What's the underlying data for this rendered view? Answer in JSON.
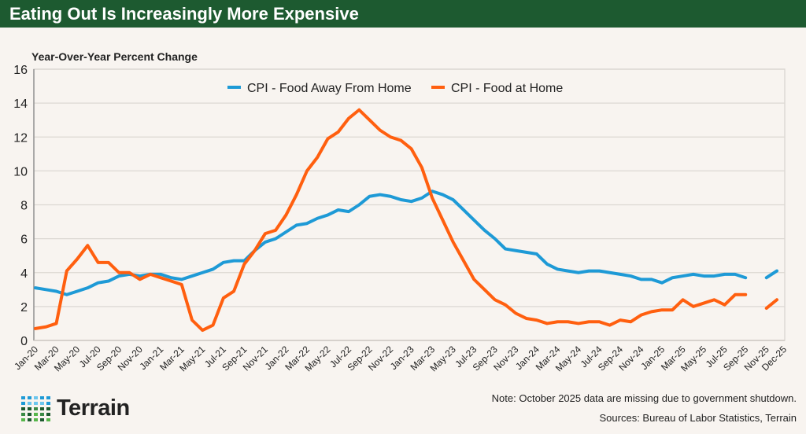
{
  "header": {
    "title": "Eating Out Is Increasingly More Expensive"
  },
  "notes": {
    "note": "Note: October 2025 data are missing due to government shutdown.",
    "sources": "Sources: Bureau of Labor Statistics, Terrain"
  },
  "logo": {
    "text": "Terrain"
  },
  "chart_data": {
    "type": "line",
    "title": "",
    "ylabel": "Year-Over-Year Percent Change",
    "xlabel": "",
    "ylim": [
      0,
      16
    ],
    "yticks": [
      0,
      2,
      4,
      6,
      8,
      10,
      12,
      14,
      16
    ],
    "grid": true,
    "legend_position": "top-center",
    "x": [
      "Jan-20",
      "Feb-20",
      "Mar-20",
      "Apr-20",
      "May-20",
      "Jun-20",
      "Jul-20",
      "Aug-20",
      "Sep-20",
      "Oct-20",
      "Nov-20",
      "Dec-20",
      "Jan-21",
      "Feb-21",
      "Mar-21",
      "Apr-21",
      "May-21",
      "Jun-21",
      "Jul-21",
      "Aug-21",
      "Sep-21",
      "Oct-21",
      "Nov-21",
      "Dec-21",
      "Jan-22",
      "Feb-22",
      "Mar-22",
      "Apr-22",
      "May-22",
      "Jun-22",
      "Jul-22",
      "Aug-22",
      "Sep-22",
      "Oct-22",
      "Nov-22",
      "Dec-22",
      "Jan-23",
      "Feb-23",
      "Mar-23",
      "Apr-23",
      "May-23",
      "Jun-23",
      "Jul-23",
      "Aug-23",
      "Sep-23",
      "Oct-23",
      "Nov-23",
      "Dec-23",
      "Jan-24",
      "Feb-24",
      "Mar-24",
      "Apr-24",
      "May-24",
      "Jun-24",
      "Jul-24",
      "Aug-24",
      "Sep-24",
      "Oct-24",
      "Nov-24",
      "Dec-24",
      "Jan-25",
      "Feb-25",
      "Mar-25",
      "Apr-25",
      "May-25",
      "Jun-25",
      "Jul-25",
      "Aug-25",
      "Sep-25",
      "Oct-25",
      "Nov-25",
      "Dec-25"
    ],
    "xtick_labels": [
      "Jan-20",
      "Mar-20",
      "May-20",
      "Jul-20",
      "Sep-20",
      "Nov-20",
      "Jan-21",
      "Mar-21",
      "May-21",
      "Jul-21",
      "Sep-21",
      "Nov-21",
      "Jan-22",
      "Mar-22",
      "May-22",
      "Jul-22",
      "Sep-22",
      "Nov-22",
      "Jan-23",
      "Mar-23",
      "May-23",
      "Jul-23",
      "Sep-23",
      "Nov-23",
      "Jan-24",
      "Mar-24",
      "May-24",
      "Jul-24",
      "Sep-24",
      "Nov-24",
      "Jan-25",
      "Mar-25",
      "May-25",
      "Jul-25",
      "Sep-25",
      "Nov-25",
      "Dec-25"
    ],
    "series": [
      {
        "name": "CPI - Food Away From Home",
        "color": "#1e9ad6",
        "values": [
          3.1,
          3.0,
          2.9,
          2.7,
          2.9,
          3.1,
          3.4,
          3.5,
          3.8,
          3.9,
          3.8,
          3.9,
          3.9,
          3.7,
          3.6,
          3.8,
          4.0,
          4.2,
          4.6,
          4.7,
          4.7,
          5.3,
          5.8,
          6.0,
          6.4,
          6.8,
          6.9,
          7.2,
          7.4,
          7.7,
          7.6,
          8.0,
          8.5,
          8.6,
          8.5,
          8.3,
          8.2,
          8.4,
          8.8,
          8.6,
          8.3,
          7.7,
          7.1,
          6.5,
          6.0,
          5.4,
          5.3,
          5.2,
          5.1,
          4.5,
          4.2,
          4.1,
          4.0,
          4.1,
          4.1,
          4.0,
          3.9,
          3.8,
          3.6,
          3.6,
          3.4,
          3.7,
          3.8,
          3.9,
          3.8,
          3.8,
          3.9,
          3.9,
          3.7,
          null,
          3.7,
          4.1
        ]
      },
      {
        "name": "CPI - Food at Home",
        "color": "#ff5f0f",
        "values": [
          0.7,
          0.8,
          1.0,
          4.1,
          4.8,
          5.6,
          4.6,
          4.6,
          4.0,
          4.0,
          3.6,
          3.9,
          3.7,
          3.5,
          3.3,
          1.2,
          0.6,
          0.9,
          2.5,
          2.9,
          4.5,
          5.3,
          6.3,
          6.5,
          7.4,
          8.6,
          10.0,
          10.8,
          11.9,
          12.3,
          13.1,
          13.6,
          13.0,
          12.4,
          12.0,
          11.8,
          11.3,
          10.2,
          8.4,
          7.1,
          5.8,
          4.7,
          3.6,
          3.0,
          2.4,
          2.1,
          1.6,
          1.3,
          1.2,
          1.0,
          1.1,
          1.1,
          1.0,
          1.1,
          1.1,
          0.9,
          1.2,
          1.1,
          1.5,
          1.7,
          1.8,
          1.8,
          2.4,
          2.0,
          2.2,
          2.4,
          2.1,
          2.7,
          2.7,
          null,
          1.9,
          2.4
        ]
      }
    ]
  }
}
